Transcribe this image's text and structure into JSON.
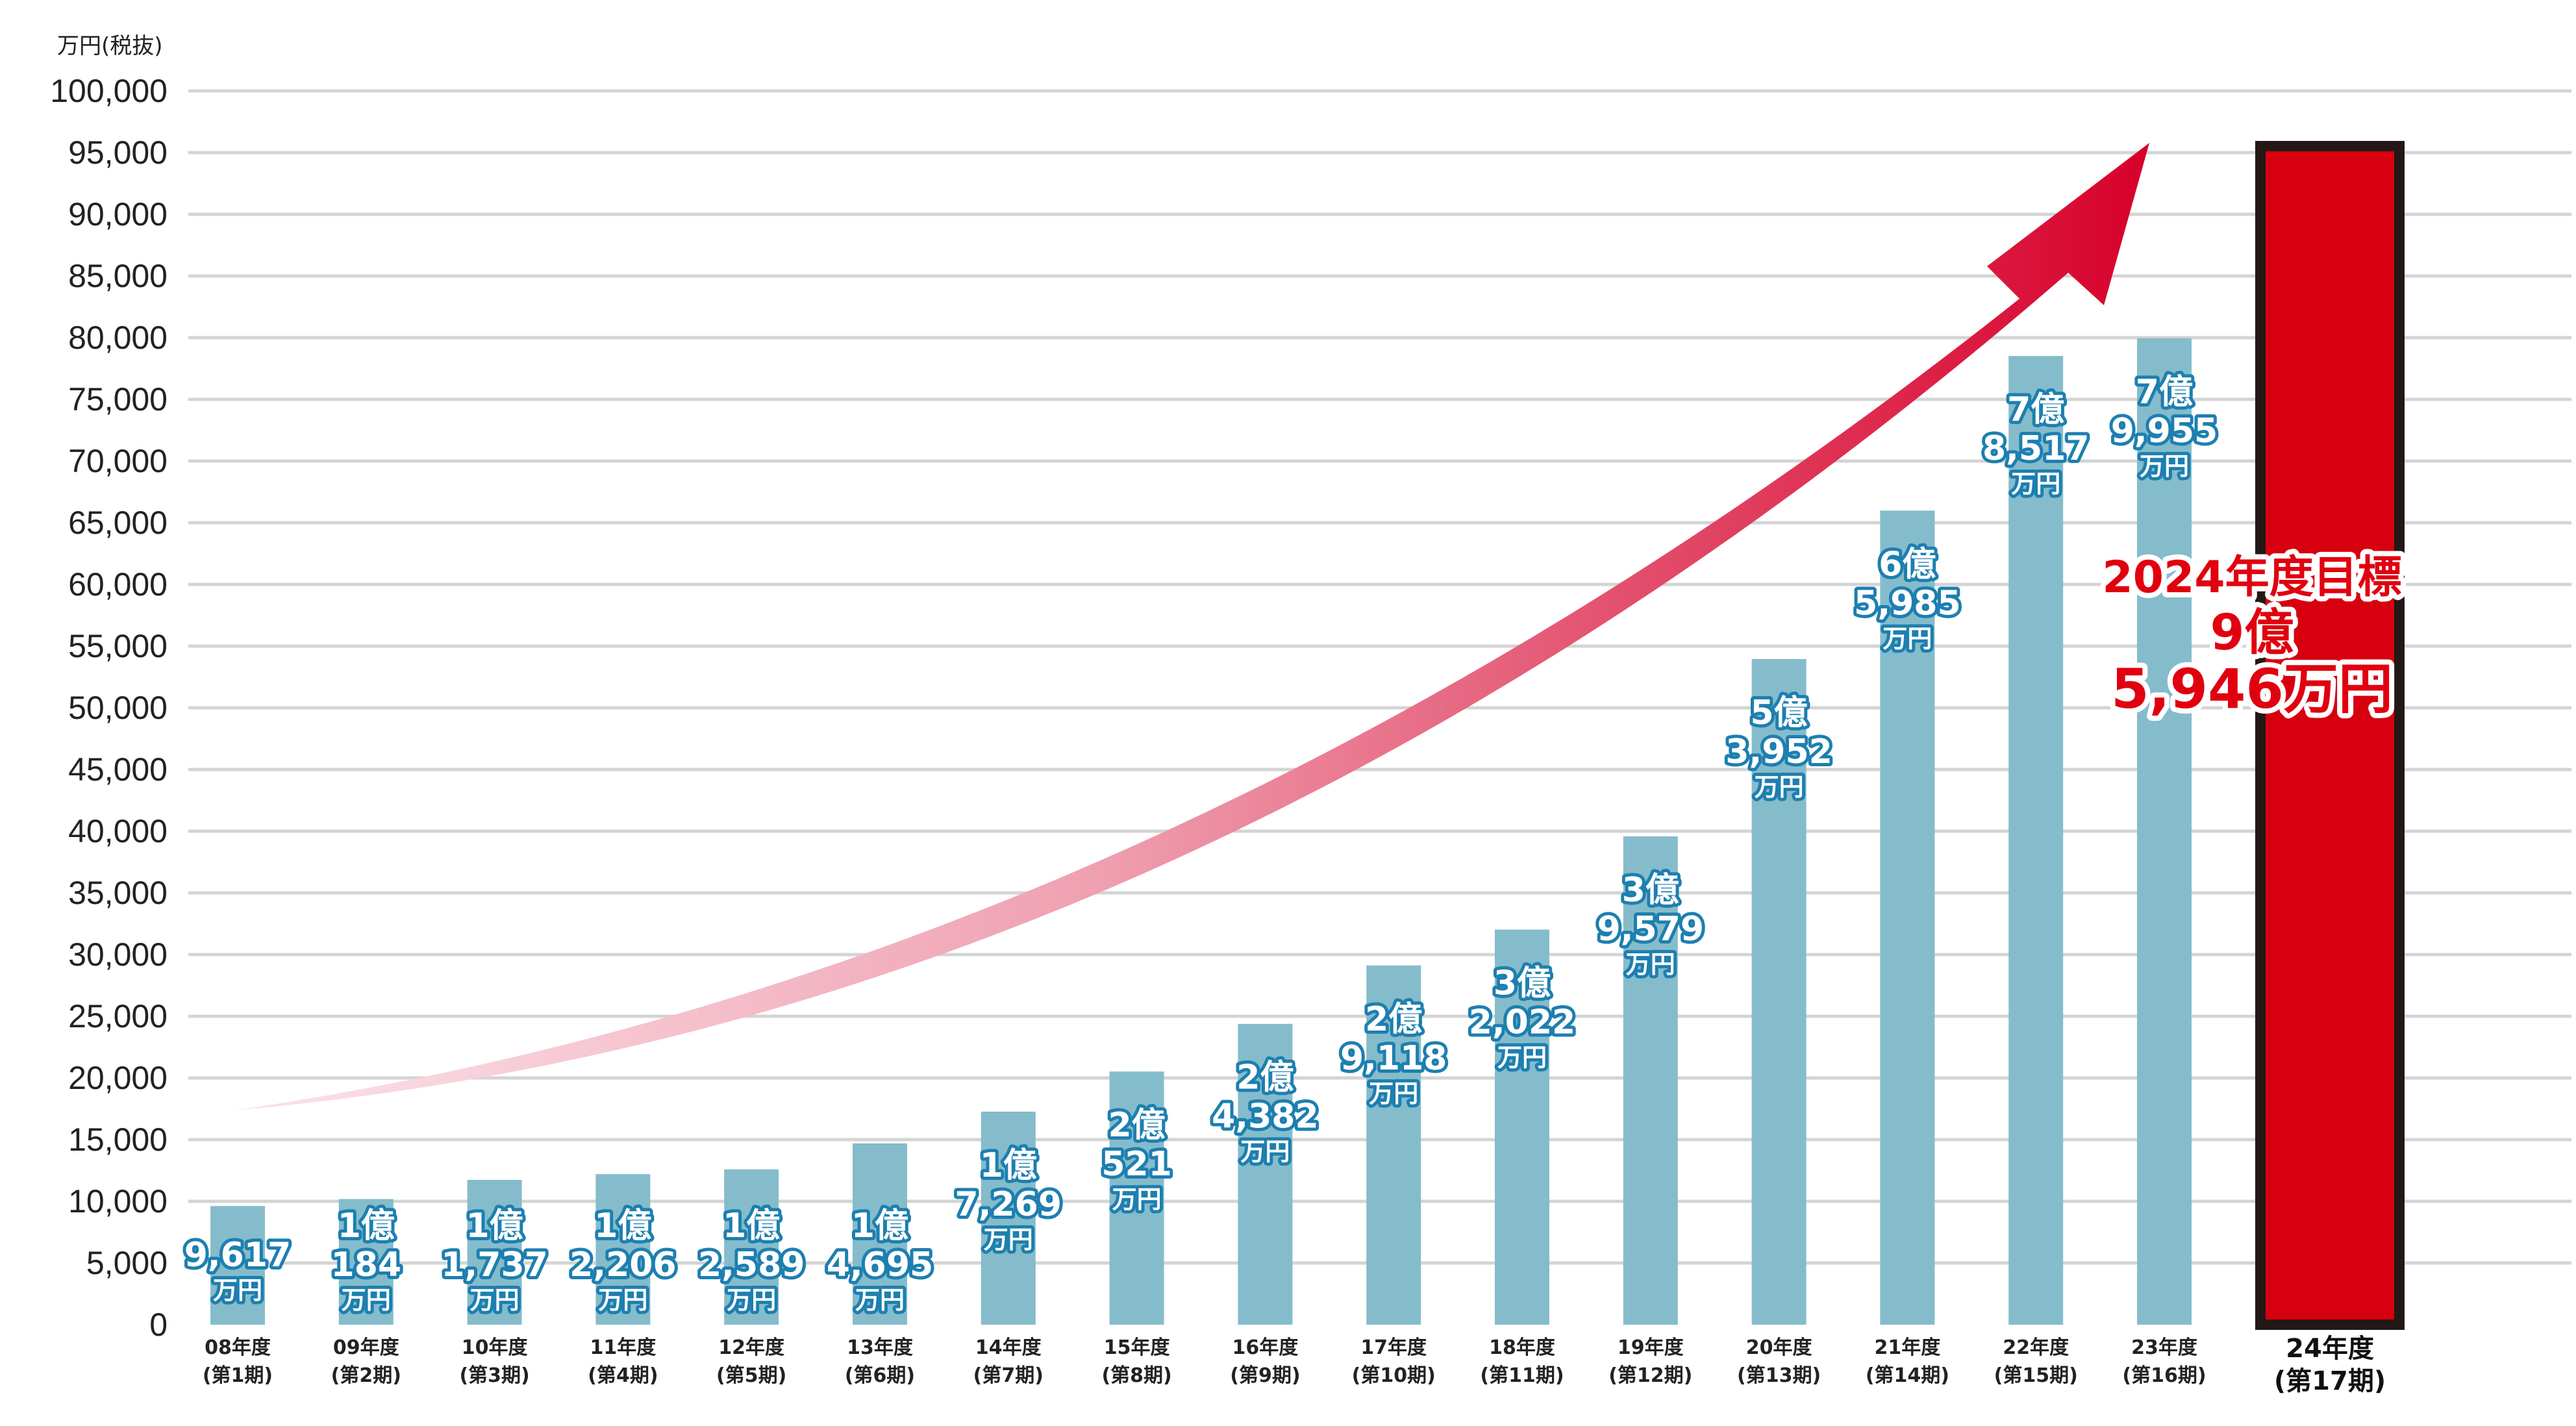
{
  "chart_data": {
    "type": "bar",
    "unit_label": "万円(税抜)",
    "ylim": [
      0,
      100000
    ],
    "y_ticks": [
      "0",
      "5,000",
      "10,000",
      "15,000",
      "20,000",
      "25,000",
      "30,000",
      "35,000",
      "40,000",
      "45,000",
      "50,000",
      "55,000",
      "60,000",
      "65,000",
      "70,000",
      "75,000",
      "80,000",
      "85,000",
      "90,000",
      "95,000",
      "100,000"
    ],
    "grid": true,
    "colors": {
      "bar": "#85bccb",
      "target_fill": "#d7000f",
      "target_border": "#231815",
      "arrow_end": "#d7002a",
      "label_stroke": "#1d7fb0"
    },
    "categories": [
      {
        "label": "08年度",
        "sub": "(第1期)"
      },
      {
        "label": "09年度",
        "sub": "(第2期)"
      },
      {
        "label": "10年度",
        "sub": "(第3期)"
      },
      {
        "label": "11年度",
        "sub": "(第4期)"
      },
      {
        "label": "12年度",
        "sub": "(第5期)"
      },
      {
        "label": "13年度",
        "sub": "(第6期)"
      },
      {
        "label": "14年度",
        "sub": "(第7期)"
      },
      {
        "label": "15年度",
        "sub": "(第8期)"
      },
      {
        "label": "16年度",
        "sub": "(第9期)"
      },
      {
        "label": "17年度",
        "sub": "(第10期)"
      },
      {
        "label": "18年度",
        "sub": "(第11期)"
      },
      {
        "label": "19年度",
        "sub": "(第12期)"
      },
      {
        "label": "20年度",
        "sub": "(第13期)"
      },
      {
        "label": "21年度",
        "sub": "(第14期)"
      },
      {
        "label": "22年度",
        "sub": "(第15期)"
      },
      {
        "label": "23年度",
        "sub": "(第16期)"
      },
      {
        "label": "24年度",
        "sub": "(第17期)"
      }
    ],
    "values": [
      9617,
      10184,
      11737,
      12206,
      12589,
      14695,
      17269,
      20521,
      24382,
      29118,
      32022,
      39579,
      53952,
      65985,
      78517,
      79955,
      95946
    ],
    "data_labels": [
      [
        "9,617",
        "万円"
      ],
      [
        "1億",
        "184",
        "万円"
      ],
      [
        "1億",
        "1,737",
        "万円"
      ],
      [
        "1億",
        "2,206",
        "万円"
      ],
      [
        "1億",
        "2,589",
        "万円"
      ],
      [
        "1億",
        "4,695",
        "万円"
      ],
      [
        "1億",
        "7,269",
        "万円"
      ],
      [
        "2億",
        "521",
        "万円"
      ],
      [
        "2億",
        "4,382",
        "万円"
      ],
      [
        "2億",
        "9,118",
        "万円"
      ],
      [
        "3億",
        "2,022",
        "万円"
      ],
      [
        "3億",
        "9,579",
        "万円"
      ],
      [
        "5億",
        "3,952",
        "万円"
      ],
      [
        "6億",
        "5,985",
        "万円"
      ],
      [
        "7億",
        "8,517",
        "万円"
      ],
      [
        "7億",
        "9,955",
        "万円"
      ]
    ],
    "target": {
      "lines": [
        "2024年度目標",
        "9億",
        "5,946万円"
      ]
    }
  }
}
